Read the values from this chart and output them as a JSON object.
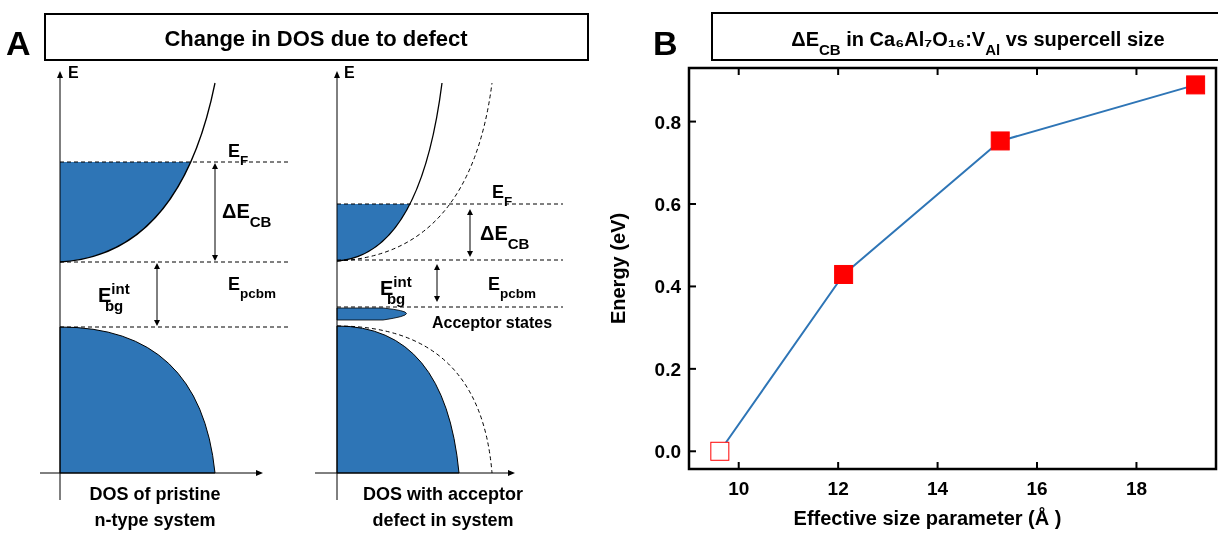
{
  "chart_data": [
    {
      "type": "other",
      "title": "Change in DOS due to defect",
      "annotations": [
        "A",
        "E",
        "E",
        "E$_{F}$",
        "ΔE$_{CB}$",
        "E$^{int}$$_{bg}$",
        "E$_{pcbm}$",
        "E$_{F}$",
        "ΔE$_{CB}$",
        "E$^{int}$$_{bg}$",
        "E$_{pcbm}$",
        "Acceptor states",
        "DOS of pristine",
        "n-type system",
        "DOS with acceptor",
        "defect in system"
      ]
    },
    {
      "type": "line",
      "title": "ΔE$_{CB}$ in Ca₆Al₇O₁₆:V$_{Al}$ vs supercell size",
      "annotations": [
        "B"
      ],
      "xlabel": "Effective size parameter (Å )",
      "ylabel": "Energy (eV)",
      "x": [
        9.62,
        12.11,
        15.26,
        19.19
      ],
      "xlim": [
        9,
        19.6
      ],
      "xticks": [
        10,
        12,
        14,
        16,
        18
      ],
      "ylim": [
        -0.043,
        0.93
      ],
      "yticks": [
        {
          "value": 0,
          "label": "0.0"
        },
        0.2,
        0.4,
        0.6,
        0.8
      ],
      "grid": false,
      "series": [
        {
          "type": "line",
          "color": "#2e75b6",
          "marker": "square",
          "colors": [
            "#ffffff",
            "#ff0000",
            "#ff0000",
            "#ff0000"
          ],
          "values": [
            0,
            0.429,
            0.753,
            0.889
          ]
        }
      ]
    }
  ]
}
